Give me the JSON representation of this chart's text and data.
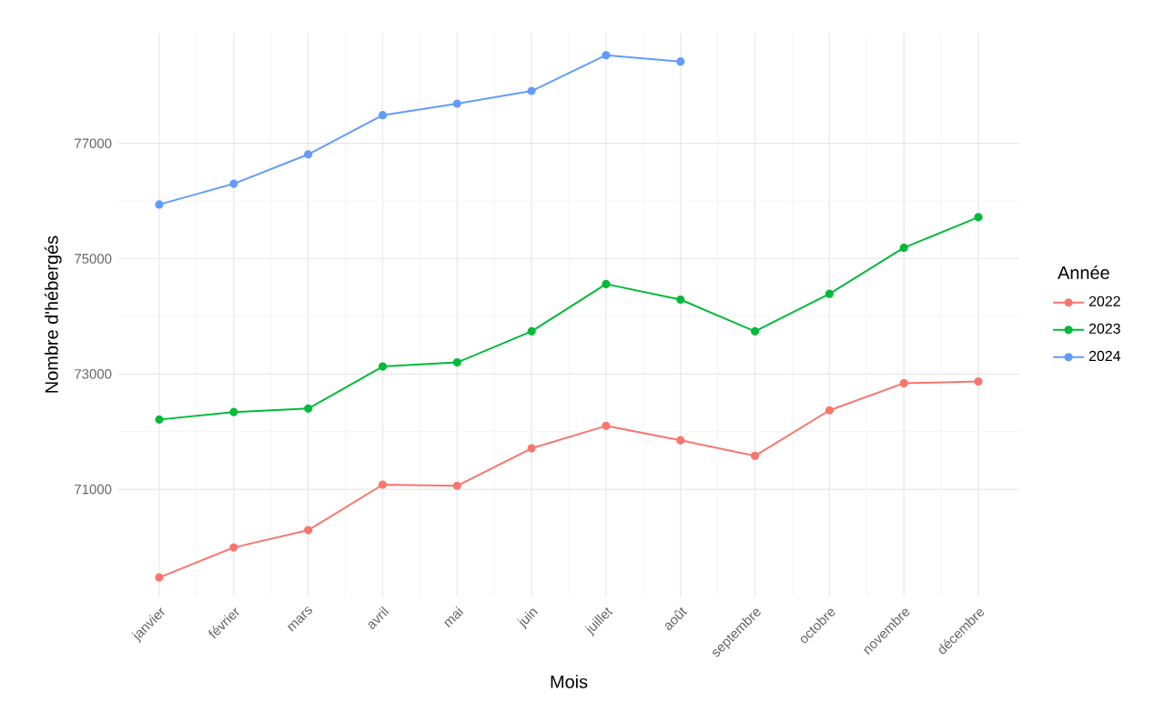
{
  "chart_data": {
    "type": "line",
    "xlabel": "Mois",
    "ylabel": "Nombre d'hébergés",
    "legend_title": "Année",
    "categories": [
      "janvier",
      "février",
      "mars",
      "avril",
      "mai",
      "juin",
      "juillet",
      "août",
      "septembre",
      "octobre",
      "novembre",
      "décembre"
    ],
    "series": [
      {
        "name": "2022",
        "color": "#f8766d",
        "values": [
          69470,
          69990,
          70290,
          71080,
          71060,
          71710,
          72100,
          71850,
          71580,
          72370,
          72840,
          72870
        ]
      },
      {
        "name": "2023",
        "color": "#00ba38",
        "values": [
          72210,
          72340,
          72400,
          73130,
          73200,
          73740,
          74560,
          74290,
          73740,
          74390,
          75190,
          75720
        ]
      },
      {
        "name": "2024",
        "color": "#619cff",
        "values": [
          75940,
          76300,
          76810,
          77490,
          77690,
          77910,
          78530,
          78420,
          null,
          null,
          null,
          null
        ]
      }
    ],
    "ylim": [
      69140,
      78920
    ],
    "yticks": [
      71000,
      73000,
      75000,
      77000
    ],
    "grid": true,
    "legend": "right",
    "marker": "circle",
    "line_style": "solid"
  }
}
